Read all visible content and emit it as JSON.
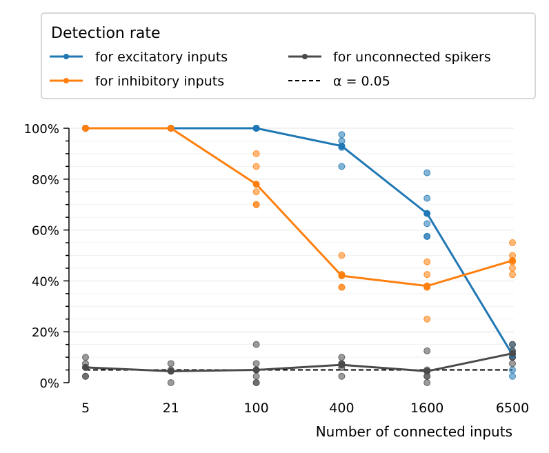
{
  "chart_data": {
    "type": "line",
    "legend": {
      "title": "Detection rate",
      "placement": "top",
      "entries": [
        {
          "label": "for excitatory inputs",
          "color": "#1f77b4",
          "style": "line-marker"
        },
        {
          "label": "for inhibitory inputs",
          "color": "#ff7f0e",
          "style": "line-marker"
        },
        {
          "label": "for unconnected spikers",
          "color": "#4a4a4a",
          "style": "line-marker"
        },
        {
          "label": "α = 0.05",
          "color": "#000000",
          "style": "dashed"
        }
      ]
    },
    "xlabel": "Number of connected inputs",
    "ylabel": "",
    "categories": [
      "5",
      "21",
      "100",
      "400",
      "1600",
      "6500"
    ],
    "y_ticks": [
      "0%",
      "20%",
      "40%",
      "60%",
      "80%",
      "100%"
    ],
    "ylim": [
      0,
      1
    ],
    "grid": "horizontal minor",
    "alpha_line": 0.05,
    "series": [
      {
        "name": "for excitatory inputs",
        "color": "#1f77b4",
        "values": [
          1.0,
          1.0,
          1.0,
          0.93,
          0.665,
          0.11
        ],
        "samples": [
          [
            1.0,
            1.0,
            1.0,
            1.0,
            1.0
          ],
          [
            1.0,
            1.0,
            1.0,
            1.0,
            1.0
          ],
          [
            1.0,
            1.0,
            1.0,
            1.0,
            1.0
          ],
          [
            0.975,
            0.95,
            0.925,
            0.85
          ],
          [
            0.825,
            0.725,
            0.625,
            0.575,
            0.575
          ],
          [
            0.15,
            0.125,
            0.1,
            0.05,
            0.025
          ]
        ]
      },
      {
        "name": "for inhibitory inputs",
        "color": "#ff7f0e",
        "values": [
          1.0,
          1.0,
          0.78,
          0.42,
          0.38,
          0.48
        ],
        "samples": [
          [
            1.0,
            1.0,
            1.0,
            1.0,
            1.0
          ],
          [
            1.0,
            1.0,
            1.0,
            1.0,
            1.0
          ],
          [
            0.9,
            0.85,
            0.75,
            0.7,
            0.7
          ],
          [
            0.5,
            0.425,
            0.425,
            0.375,
            0.375
          ],
          [
            0.475,
            0.425,
            0.375,
            0.375,
            0.25
          ],
          [
            0.55,
            0.5,
            0.475,
            0.45,
            0.425
          ]
        ]
      },
      {
        "name": "for unconnected spikers",
        "color": "#4a4a4a",
        "values": [
          0.06,
          0.045,
          0.05,
          0.07,
          0.045,
          0.115
        ],
        "samples": [
          [
            0.1,
            0.075,
            0.06,
            0.025,
            0.025
          ],
          [
            0.075,
            0.05,
            0.045,
            0.0
          ],
          [
            0.15,
            0.075,
            0.05,
            0.025,
            0.0,
            0.0
          ],
          [
            0.1,
            0.075,
            0.075,
            0.06,
            0.025
          ],
          [
            0.125,
            0.05,
            0.025,
            0.025,
            0.0
          ],
          [
            0.15,
            0.125,
            0.1,
            0.1,
            0.075
          ]
        ]
      }
    ]
  }
}
